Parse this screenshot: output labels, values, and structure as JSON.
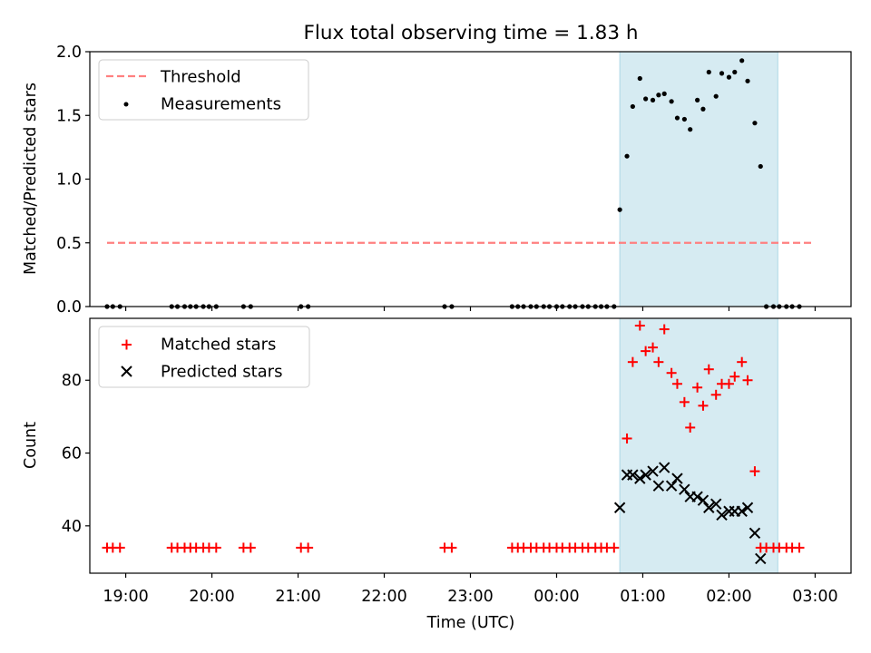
{
  "title": "Flux total observing time = 1.83 h",
  "chart_data": [
    {
      "type": "scatter",
      "panel": "top",
      "ylabel": "Matched/Predicted stars",
      "xlabel": "",
      "xlim": [
        "18:35",
        "03:25"
      ],
      "ylim": [
        0,
        2.0
      ],
      "yticks": [
        0.0,
        0.5,
        1.0,
        1.5,
        2.0
      ],
      "ytick_labels": [
        "0.0",
        "0.5",
        "1.0",
        "1.5",
        "2.0"
      ],
      "legend": {
        "position": "upper-left",
        "entries": [
          "Threshold",
          "Measurements"
        ]
      },
      "shaded_span": {
        "from": "00:44",
        "to": "02:34",
        "color": "#add8e6"
      },
      "threshold": {
        "name": "Threshold",
        "value": 0.5,
        "from": "18:47",
        "to": "02:58",
        "color": "#ff8080",
        "style": "dashed"
      },
      "series": [
        {
          "name": "Measurements",
          "color": "#000000",
          "marker": "dot",
          "points": [
            [
              "18:47",
              0
            ],
            [
              "18:51",
              0
            ],
            [
              "18:56",
              0
            ],
            [
              "19:32",
              0
            ],
            [
              "19:36",
              0
            ],
            [
              "19:41",
              0
            ],
            [
              "19:45",
              0
            ],
            [
              "19:49",
              0
            ],
            [
              "19:54",
              0
            ],
            [
              "19:58",
              0
            ],
            [
              "20:03",
              0
            ],
            [
              "20:22",
              0
            ],
            [
              "20:27",
              0
            ],
            [
              "21:02",
              0
            ],
            [
              "21:07",
              0
            ],
            [
              "22:42",
              0
            ],
            [
              "22:47",
              0
            ],
            [
              "23:29",
              0
            ],
            [
              "23:33",
              0
            ],
            [
              "23:37",
              0
            ],
            [
              "23:42",
              0
            ],
            [
              "23:46",
              0
            ],
            [
              "23:51",
              0
            ],
            [
              "23:55",
              0
            ],
            [
              "24:00",
              0
            ],
            [
              "24:04",
              0
            ],
            [
              "24:09",
              0
            ],
            [
              "24:13",
              0
            ],
            [
              "24:18",
              0
            ],
            [
              "24:22",
              0
            ],
            [
              "24:27",
              0
            ],
            [
              "24:31",
              0
            ],
            [
              "24:35",
              0
            ],
            [
              "24:40",
              0
            ],
            [
              "24:44",
              0.76
            ],
            [
              "24:49",
              1.18
            ],
            [
              "24:53",
              1.57
            ],
            [
              "24:58",
              1.79
            ],
            [
              "25:02",
              1.63
            ],
            [
              "25:07",
              1.62
            ],
            [
              "25:11",
              1.66
            ],
            [
              "25:15",
              1.67
            ],
            [
              "25:20",
              1.61
            ],
            [
              "25:24",
              1.48
            ],
            [
              "25:29",
              1.47
            ],
            [
              "25:33",
              1.39
            ],
            [
              "25:38",
              1.62
            ],
            [
              "25:42",
              1.55
            ],
            [
              "25:46",
              1.84
            ],
            [
              "25:51",
              1.65
            ],
            [
              "25:55",
              1.83
            ],
            [
              "26:00",
              1.8
            ],
            [
              "26:04",
              1.84
            ],
            [
              "26:09",
              1.93
            ],
            [
              "26:13",
              1.77
            ],
            [
              "26:18",
              1.44
            ],
            [
              "26:22",
              1.1
            ],
            [
              "26:26",
              0
            ],
            [
              "26:31",
              0
            ],
            [
              "26:35",
              0
            ],
            [
              "26:40",
              0
            ],
            [
              "26:44",
              0
            ],
            [
              "26:49",
              0
            ]
          ]
        }
      ]
    },
    {
      "type": "scatter",
      "panel": "bottom",
      "ylabel": "Count",
      "xlabel": "Time (UTC)",
      "xlim": [
        "18:35",
        "03:25"
      ],
      "ylim": [
        27,
        97
      ],
      "yticks": [
        40,
        60,
        80
      ],
      "ytick_labels": [
        "40",
        "60",
        "80"
      ],
      "xticks": [
        "19:00",
        "20:00",
        "21:00",
        "22:00",
        "23:00",
        "00:00",
        "01:00",
        "02:00",
        "03:00"
      ],
      "legend": {
        "position": "upper-left",
        "entries": [
          "Matched stars",
          "Predicted stars"
        ]
      },
      "shaded_span": {
        "from": "00:44",
        "to": "02:34",
        "color": "#add8e6"
      },
      "series": [
        {
          "name": "Matched stars",
          "color": "#ff0000",
          "marker": "plus",
          "points": [
            [
              "18:47",
              34
            ],
            [
              "18:51",
              34
            ],
            [
              "18:56",
              34
            ],
            [
              "19:32",
              34
            ],
            [
              "19:36",
              34
            ],
            [
              "19:41",
              34
            ],
            [
              "19:45",
              34
            ],
            [
              "19:49",
              34
            ],
            [
              "19:54",
              34
            ],
            [
              "19:58",
              34
            ],
            [
              "20:03",
              34
            ],
            [
              "20:22",
              34
            ],
            [
              "20:27",
              34
            ],
            [
              "21:02",
              34
            ],
            [
              "21:07",
              34
            ],
            [
              "22:42",
              34
            ],
            [
              "22:47",
              34
            ],
            [
              "23:29",
              34
            ],
            [
              "23:33",
              34
            ],
            [
              "23:37",
              34
            ],
            [
              "23:42",
              34
            ],
            [
              "23:46",
              34
            ],
            [
              "23:51",
              34
            ],
            [
              "23:55",
              34
            ],
            [
              "24:00",
              34
            ],
            [
              "24:04",
              34
            ],
            [
              "24:09",
              34
            ],
            [
              "24:13",
              34
            ],
            [
              "24:18",
              34
            ],
            [
              "24:22",
              34
            ],
            [
              "24:27",
              34
            ],
            [
              "24:31",
              34
            ],
            [
              "24:35",
              34
            ],
            [
              "24:40",
              34
            ],
            [
              "24:49",
              64
            ],
            [
              "24:53",
              85
            ],
            [
              "24:58",
              95
            ],
            [
              "25:02",
              88
            ],
            [
              "25:07",
              89
            ],
            [
              "25:11",
              85
            ],
            [
              "25:15",
              94
            ],
            [
              "25:20",
              82
            ],
            [
              "25:24",
              79
            ],
            [
              "25:29",
              74
            ],
            [
              "25:33",
              67
            ],
            [
              "25:38",
              78
            ],
            [
              "25:42",
              73
            ],
            [
              "25:46",
              83
            ],
            [
              "25:51",
              76
            ],
            [
              "25:55",
              79
            ],
            [
              "26:00",
              79
            ],
            [
              "26:04",
              81
            ],
            [
              "26:09",
              85
            ],
            [
              "26:13",
              80
            ],
            [
              "26:18",
              55
            ],
            [
              "26:22",
              34
            ],
            [
              "26:26",
              34
            ],
            [
              "26:31",
              34
            ],
            [
              "26:35",
              34
            ],
            [
              "26:40",
              34
            ],
            [
              "26:44",
              34
            ],
            [
              "26:49",
              34
            ]
          ]
        },
        {
          "name": "Predicted stars",
          "color": "#000000",
          "marker": "x",
          "points": [
            [
              "24:44",
              45
            ],
            [
              "24:49",
              54
            ],
            [
              "24:53",
              54
            ],
            [
              "24:58",
              53
            ],
            [
              "25:02",
              54
            ],
            [
              "25:07",
              55
            ],
            [
              "25:11",
              51
            ],
            [
              "25:15",
              56
            ],
            [
              "25:20",
              51
            ],
            [
              "25:24",
              53
            ],
            [
              "25:29",
              50
            ],
            [
              "25:33",
              48
            ],
            [
              "25:38",
              48
            ],
            [
              "25:42",
              47
            ],
            [
              "25:46",
              45
            ],
            [
              "25:51",
              46
            ],
            [
              "25:55",
              43
            ],
            [
              "26:00",
              44
            ],
            [
              "26:04",
              44
            ],
            [
              "26:09",
              44
            ],
            [
              "26:13",
              45
            ],
            [
              "26:18",
              38
            ],
            [
              "26:22",
              31
            ]
          ]
        }
      ]
    }
  ]
}
